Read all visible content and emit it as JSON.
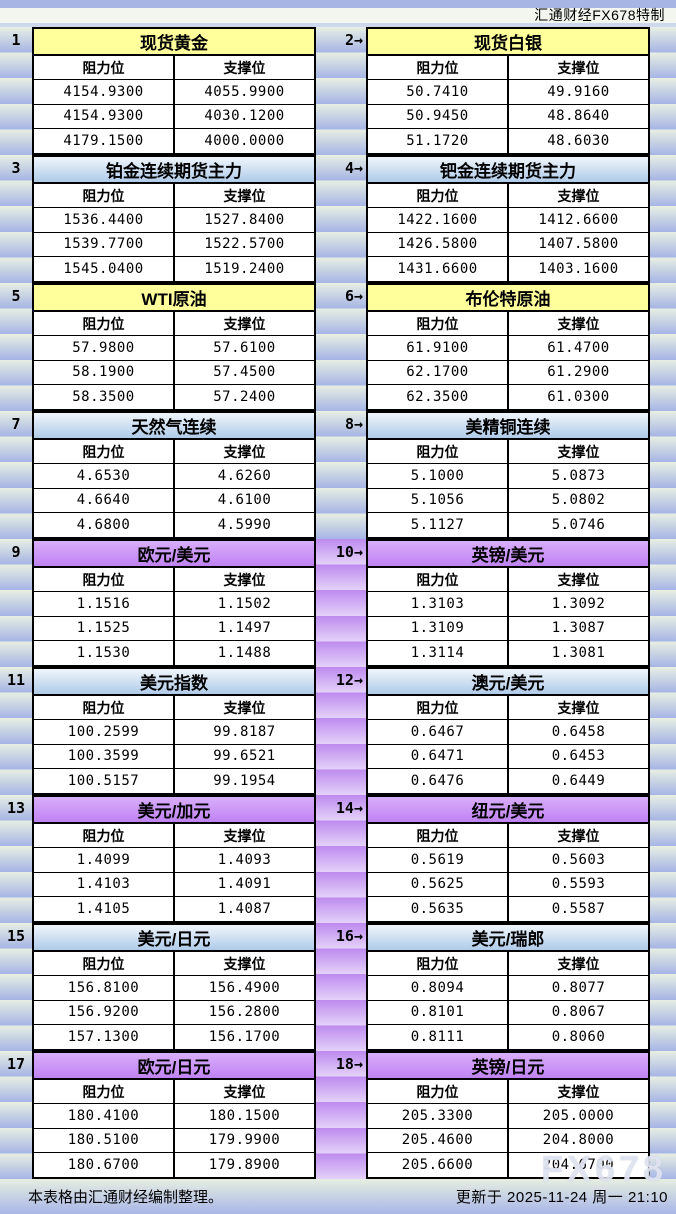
{
  "meta": {
    "brand_note": "汇通财经FX678特制",
    "footer_left": "本表格由汇通财经编制整理。",
    "footer_right": "更新于 2025-11-24 周一 21:10",
    "watermark": "FX678",
    "arrow": "→"
  },
  "column_headers": {
    "resistance": "阻力位",
    "support": "支撑位"
  },
  "colors": {
    "title_yellow": "#ffff9c",
    "title_blue": "#afcbe9",
    "title_purple": "#c083f2",
    "band_green_blue_top": "#e7efe3",
    "band_green_blue_bottom": "#a6b4e5",
    "band_purple_top": "#bd8aef",
    "band_purple_bottom": "#e4d2f9",
    "cell_bg": "#ffffff",
    "border": "#000000"
  },
  "panels": [
    {
      "num": "1",
      "title": "现货黄金",
      "style": "yellow",
      "rows": [
        [
          "4154.9300",
          "4055.9900"
        ],
        [
          "4154.9300",
          "4030.1200"
        ],
        [
          "4179.1500",
          "4000.0000"
        ]
      ]
    },
    {
      "num": "2",
      "title": "现货白银",
      "style": "yellow",
      "rows": [
        [
          "50.7410",
          "49.9160"
        ],
        [
          "50.9450",
          "48.8640"
        ],
        [
          "51.1720",
          "48.6030"
        ]
      ]
    },
    {
      "num": "3",
      "title": "铂金连续期货主力",
      "style": "blue",
      "rows": [
        [
          "1536.4400",
          "1527.8400"
        ],
        [
          "1539.7700",
          "1522.5700"
        ],
        [
          "1545.0400",
          "1519.2400"
        ]
      ]
    },
    {
      "num": "4",
      "title": "钯金连续期货主力",
      "style": "blue",
      "rows": [
        [
          "1422.1600",
          "1412.6600"
        ],
        [
          "1426.5800",
          "1407.5800"
        ],
        [
          "1431.6600",
          "1403.1600"
        ]
      ]
    },
    {
      "num": "5",
      "title": "WTI原油",
      "style": "yellow",
      "rows": [
        [
          "57.9800",
          "57.6100"
        ],
        [
          "58.1900",
          "57.4500"
        ],
        [
          "58.3500",
          "57.2400"
        ]
      ]
    },
    {
      "num": "6",
      "title": "布伦特原油",
      "style": "yellow",
      "rows": [
        [
          "61.9100",
          "61.4700"
        ],
        [
          "62.1700",
          "61.2900"
        ],
        [
          "62.3500",
          "61.0300"
        ]
      ]
    },
    {
      "num": "7",
      "title": "天然气连续",
      "style": "blue",
      "rows": [
        [
          "4.6530",
          "4.6260"
        ],
        [
          "4.6640",
          "4.6100"
        ],
        [
          "4.6800",
          "4.5990"
        ]
      ]
    },
    {
      "num": "8",
      "title": "美精铜连续",
      "style": "blue",
      "rows": [
        [
          "5.1000",
          "5.0873"
        ],
        [
          "5.1056",
          "5.0802"
        ],
        [
          "5.1127",
          "5.0746"
        ]
      ]
    },
    {
      "num": "9",
      "title": "欧元/美元",
      "style": "purple",
      "rows": [
        [
          "1.1516",
          "1.1502"
        ],
        [
          "1.1525",
          "1.1497"
        ],
        [
          "1.1530",
          "1.1488"
        ]
      ]
    },
    {
      "num": "10",
      "title": "英镑/美元",
      "style": "purple",
      "rows": [
        [
          "1.3103",
          "1.3092"
        ],
        [
          "1.3109",
          "1.3087"
        ],
        [
          "1.3114",
          "1.3081"
        ]
      ]
    },
    {
      "num": "11",
      "title": "美元指数",
      "style": "blue",
      "rows": [
        [
          "100.2599",
          "99.8187"
        ],
        [
          "100.3599",
          "99.6521"
        ],
        [
          "100.5157",
          "99.1954"
        ]
      ]
    },
    {
      "num": "12",
      "title": "澳元/美元",
      "style": "blue",
      "rows": [
        [
          "0.6467",
          "0.6458"
        ],
        [
          "0.6471",
          "0.6453"
        ],
        [
          "0.6476",
          "0.6449"
        ]
      ]
    },
    {
      "num": "13",
      "title": "美元/加元",
      "style": "purple",
      "rows": [
        [
          "1.4099",
          "1.4093"
        ],
        [
          "1.4103",
          "1.4091"
        ],
        [
          "1.4105",
          "1.4087"
        ]
      ]
    },
    {
      "num": "14",
      "title": "纽元/美元",
      "style": "purple",
      "rows": [
        [
          "0.5619",
          "0.5603"
        ],
        [
          "0.5625",
          "0.5593"
        ],
        [
          "0.5635",
          "0.5587"
        ]
      ]
    },
    {
      "num": "15",
      "title": "美元/日元",
      "style": "blue",
      "rows": [
        [
          "156.8100",
          "156.4900"
        ],
        [
          "156.9200",
          "156.2800"
        ],
        [
          "157.1300",
          "156.1700"
        ]
      ]
    },
    {
      "num": "16",
      "title": "美元/瑞郎",
      "style": "blue",
      "rows": [
        [
          "0.8094",
          "0.8077"
        ],
        [
          "0.8101",
          "0.8067"
        ],
        [
          "0.8111",
          "0.8060"
        ]
      ]
    },
    {
      "num": "17",
      "title": "欧元/日元",
      "style": "purple",
      "rows": [
        [
          "180.4100",
          "180.1500"
        ],
        [
          "180.5100",
          "179.9900"
        ],
        [
          "180.6700",
          "179.8900"
        ]
      ]
    },
    {
      "num": "18",
      "title": "英镑/日元",
      "style": "purple",
      "rows": [
        [
          "205.3300",
          "205.0000"
        ],
        [
          "205.4600",
          "204.8000"
        ],
        [
          "205.6600",
          "204.6700"
        ]
      ]
    }
  ]
}
